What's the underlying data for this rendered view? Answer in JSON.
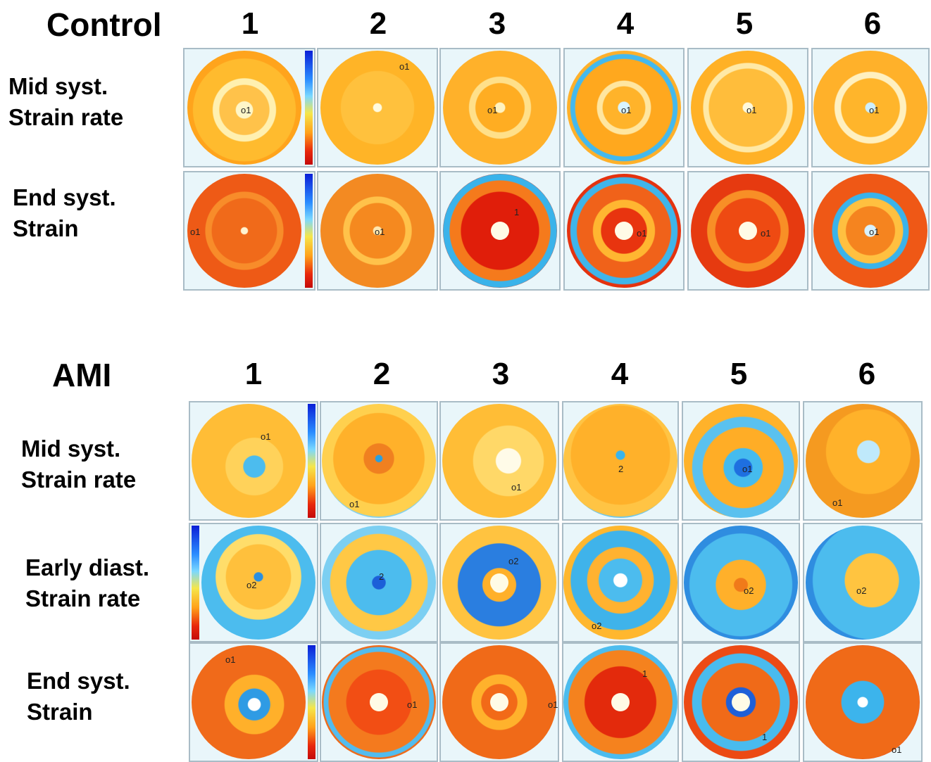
{
  "groups": [
    {
      "title": "Control",
      "columns": [
        "1",
        "2",
        "3",
        "4",
        "5",
        "6"
      ],
      "rows": [
        {
          "label_line1": "Mid syst.",
          "label_line2": "Strain rate",
          "markers": [
            "o1",
            "o1",
            "o1",
            "o1",
            "o1",
            "o1"
          ]
        },
        {
          "label_line1": "End syst.",
          "label_line2": "Strain",
          "markers": [
            "o1",
            "o1",
            "1",
            "o1",
            "o1",
            "o1"
          ]
        }
      ]
    },
    {
      "title": "AMI",
      "columns": [
        "1",
        "2",
        "3",
        "4",
        "5",
        "6"
      ],
      "rows": [
        {
          "label_line1": "Mid syst.",
          "label_line2": "Strain rate",
          "markers": [
            "o1",
            "o1",
            "o1",
            "2",
            "o1",
            "o1"
          ]
        },
        {
          "label_line1": "Early diast.",
          "label_line2": "Strain rate",
          "markers": [
            "o2",
            "2",
            "o2",
            "o2",
            "o2",
            "o2"
          ]
        },
        {
          "label_line1": "End syst.",
          "label_line2": "Strain",
          "markers": [
            "o1",
            "o1",
            "o1",
            "1",
            "1",
            "o1"
          ]
        }
      ]
    }
  ],
  "colors": {
    "orange": "#ffb01f",
    "red": "#e83212",
    "blue": "#38b6ee",
    "deep_blue": "#1f6fe0",
    "tile_background": "#e9f6fa"
  },
  "icons": {
    "tile": "bullseye-strain-map-icon",
    "scale": "color-scale-bar-icon"
  }
}
